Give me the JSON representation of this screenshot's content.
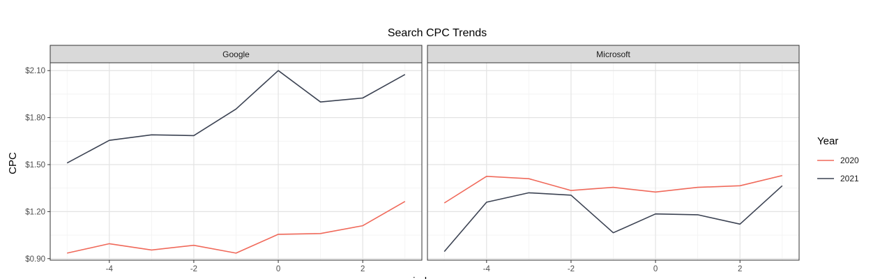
{
  "chart_data": {
    "type": "line",
    "title": "Search CPC Trends",
    "xlabel": "index",
    "ylabel": "CPC",
    "xlim": [
      -5.4,
      3.4
    ],
    "ylim": [
      0.89,
      2.15
    ],
    "x_ticks": [
      -4,
      -2,
      0,
      2
    ],
    "x_tick_labels": [
      "-4",
      "-2",
      "0",
      "2"
    ],
    "y_ticks": [
      0.9,
      1.2,
      1.5,
      1.8,
      2.1
    ],
    "y_tick_labels": [
      "$0.90",
      "$1.20",
      "$1.50",
      "$1.80",
      "$2.10"
    ],
    "grid": true,
    "legend": {
      "title": "Year",
      "position": "right",
      "entries": [
        {
          "label": "2020",
          "color": "#f0695a"
        },
        {
          "label": "2021",
          "color": "#3b4252"
        }
      ]
    },
    "x": [
      -5,
      -4,
      -3,
      -2,
      -1,
      0,
      1,
      2,
      3
    ],
    "panels": [
      {
        "label": "Google",
        "series": [
          {
            "name": "2020",
            "color": "#f0695a",
            "values": [
              0.935,
              0.995,
              0.955,
              0.985,
              0.935,
              1.055,
              1.06,
              1.11,
              1.265
            ]
          },
          {
            "name": "2021",
            "color": "#3b4252",
            "values": [
              1.51,
              1.655,
              1.69,
              1.685,
              1.855,
              2.1,
              1.9,
              1.925,
              2.075
            ]
          }
        ]
      },
      {
        "label": "Microsoft",
        "series": [
          {
            "name": "2020",
            "color": "#f0695a",
            "values": [
              1.255,
              1.425,
              1.41,
              1.335,
              1.355,
              1.325,
              1.355,
              1.365,
              1.43
            ]
          },
          {
            "name": "2021",
            "color": "#3b4252",
            "values": [
              0.945,
              1.26,
              1.32,
              1.305,
              1.065,
              1.185,
              1.18,
              1.12,
              1.365
            ]
          }
        ]
      }
    ]
  }
}
